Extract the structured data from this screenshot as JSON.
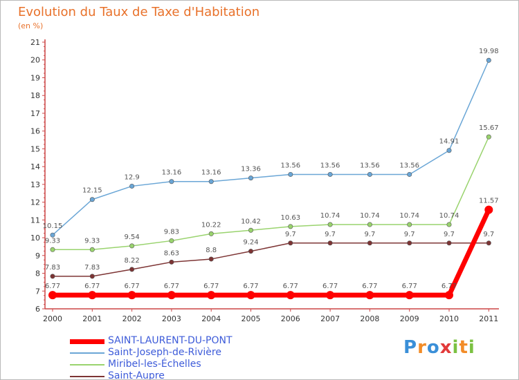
{
  "chart_data": {
    "type": "line",
    "title": "Evolution du Taux de Taxe d'Habitation",
    "subtitle": "(en %)",
    "x": [
      "2000",
      "2001",
      "2002",
      "2003",
      "2004",
      "2005",
      "2006",
      "2007",
      "2008",
      "2009",
      "2010",
      "2011"
    ],
    "ylim": [
      6,
      21
    ],
    "yticks": [
      "6",
      "7",
      "8",
      "9",
      "10",
      "11",
      "12",
      "13",
      "14",
      "15",
      "16",
      "17",
      "18",
      "19",
      "20",
      "21"
    ],
    "grid": false,
    "legend_position": "bottom-left",
    "series": [
      {
        "name": "SAINT-LAURENT-DU-PONT",
        "color": "#ff0000",
        "values": [
          6.77,
          6.77,
          6.77,
          6.77,
          6.77,
          6.77,
          6.77,
          6.77,
          6.77,
          6.77,
          6.77,
          11.57
        ],
        "labels": [
          "6.77",
          "6.77",
          "6.77",
          "6.77",
          "6.77",
          "6.77",
          "6.77",
          "6.77",
          "6.77",
          "6.77",
          "6.77",
          "11.57"
        ]
      },
      {
        "name": "Saint-Joseph-de-Rivière",
        "color": "#6aa6d6",
        "values": [
          10.15,
          12.15,
          12.9,
          13.16,
          13.16,
          13.36,
          13.56,
          13.56,
          13.56,
          13.56,
          14.91,
          19.98
        ],
        "labels": [
          "10.15",
          "12.15",
          "12.9",
          "13.16",
          "13.16",
          "13.36",
          "13.56",
          "13.56",
          "13.56",
          "13.56",
          "14.91",
          "19.98"
        ]
      },
      {
        "name": "Miribel-les-Échelles",
        "color": "#99d36d",
        "values": [
          9.33,
          9.33,
          9.54,
          9.83,
          10.22,
          10.42,
          10.63,
          10.74,
          10.74,
          10.74,
          10.74,
          15.67
        ],
        "labels": [
          "9.33",
          "9.33",
          "9.54",
          "9.83",
          "10.22",
          "10.42",
          "10.63",
          "10.74",
          "10.74",
          "10.74",
          "10.74",
          "15.67"
        ]
      },
      {
        "name": "Saint-Aupre",
        "color": "#7d3434",
        "values": [
          7.83,
          7.83,
          8.22,
          8.63,
          8.8,
          9.24,
          9.7,
          9.7,
          9.7,
          9.7,
          9.7,
          9.7
        ],
        "labels": [
          "7.83",
          "7.83",
          "8.22",
          "8.63",
          "8.8",
          "9.24",
          "9.7",
          "9.7",
          "9.7",
          "9.7",
          "9.7",
          "9.7"
        ]
      }
    ]
  },
  "logo": {
    "letters": [
      "P",
      "r",
      "o",
      "x",
      "i",
      "t",
      "i"
    ],
    "colors": [
      "#3a8fd8",
      "#f28c28",
      "#3a8fd8",
      "#e23a3a",
      "#7bc142",
      "#f28c28",
      "#7bc142"
    ]
  }
}
